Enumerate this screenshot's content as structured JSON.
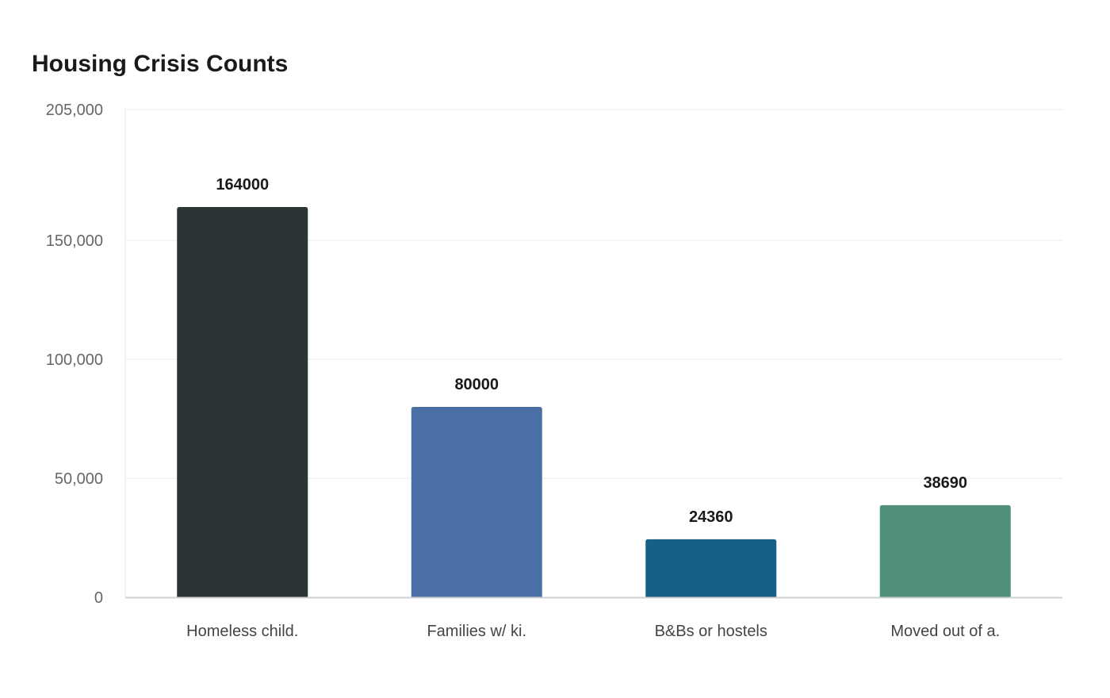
{
  "chart_data": {
    "type": "bar",
    "title": "Housing Crisis Counts",
    "xlabel": "",
    "ylabel": "",
    "categories": [
      "Homeless child.",
      "Families w/ ki.",
      "B&Bs or hostels",
      "Moved out of a."
    ],
    "values": [
      164000,
      80000,
      24360,
      38690
    ],
    "data_labels": [
      "164000",
      "80000",
      "24360",
      "38690"
    ],
    "colors": [
      "#2d3436",
      "#4a6fa5",
      "#166088",
      "#4f8f7b"
    ],
    "ylim": [
      0,
      205000
    ],
    "yticks": [
      0,
      50000,
      100000,
      150000,
      205000
    ],
    "ytick_labels": [
      "0",
      "50,000",
      "100,000",
      "150,000",
      "205,000"
    ],
    "grid": true,
    "legend": "none"
  }
}
